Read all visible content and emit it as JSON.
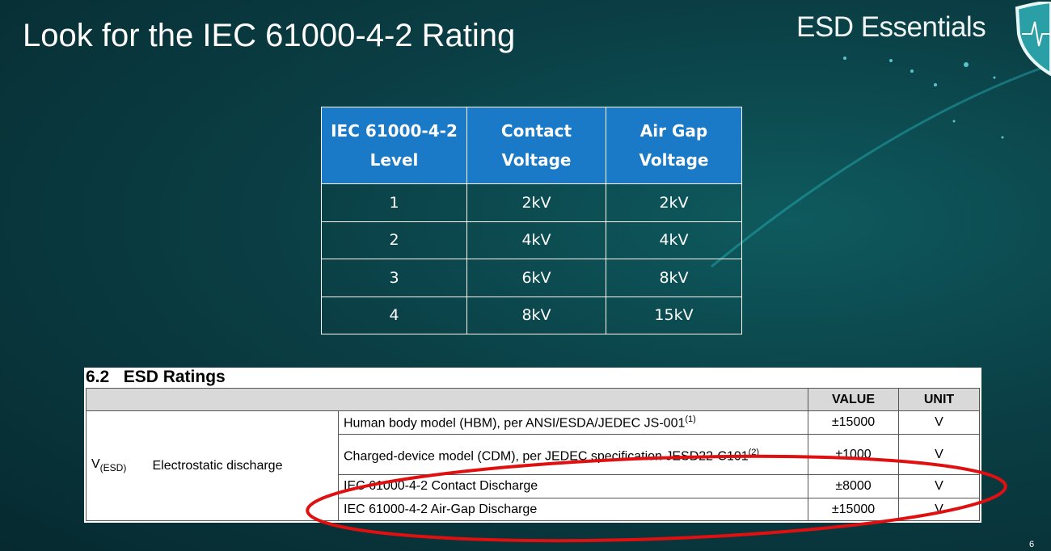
{
  "slide": {
    "title": "Look for the IEC 61000-4-2 Rating",
    "brand": "ESD Essentials",
    "page_number": "6"
  },
  "iec_table": {
    "headers": [
      [
        "IEC 61000-4-2",
        "Level"
      ],
      [
        "Contact",
        "Voltage"
      ],
      [
        "Air Gap",
        "Voltage"
      ]
    ],
    "rows": [
      [
        "1",
        "2kV",
        "2kV"
      ],
      [
        "2",
        "4kV",
        "4kV"
      ],
      [
        "3",
        "6kV",
        "8kV"
      ],
      [
        "4",
        "8kV",
        "15kV"
      ]
    ],
    "header_color": "#1a7ac8"
  },
  "esd_ratings": {
    "title": "6.2   ESD Ratings",
    "headers": {
      "value": "VALUE",
      "unit": "UNIT"
    },
    "symbol": "V",
    "symbol_sub": "(ESD)",
    "parameter": "Electrostatic discharge",
    "rows": [
      {
        "condition": "Human body model (HBM), per ANSI/ESDA/JEDEC JS-001",
        "note": "(1)",
        "value": "±15000",
        "unit": "V"
      },
      {
        "condition": "Charged-device model (CDM), per JEDEC specification JESD22-C101",
        "note": "(2)",
        "value": "±1000",
        "unit": "V"
      },
      {
        "condition": "IEC 61000-4-2 Contact Discharge",
        "note": "",
        "value": "±8000",
        "unit": "V"
      },
      {
        "condition": "IEC 61000-4-2 Air-Gap Discharge",
        "note": "",
        "value": "±15000",
        "unit": "V"
      }
    ],
    "highlight_color": "#e01010"
  }
}
